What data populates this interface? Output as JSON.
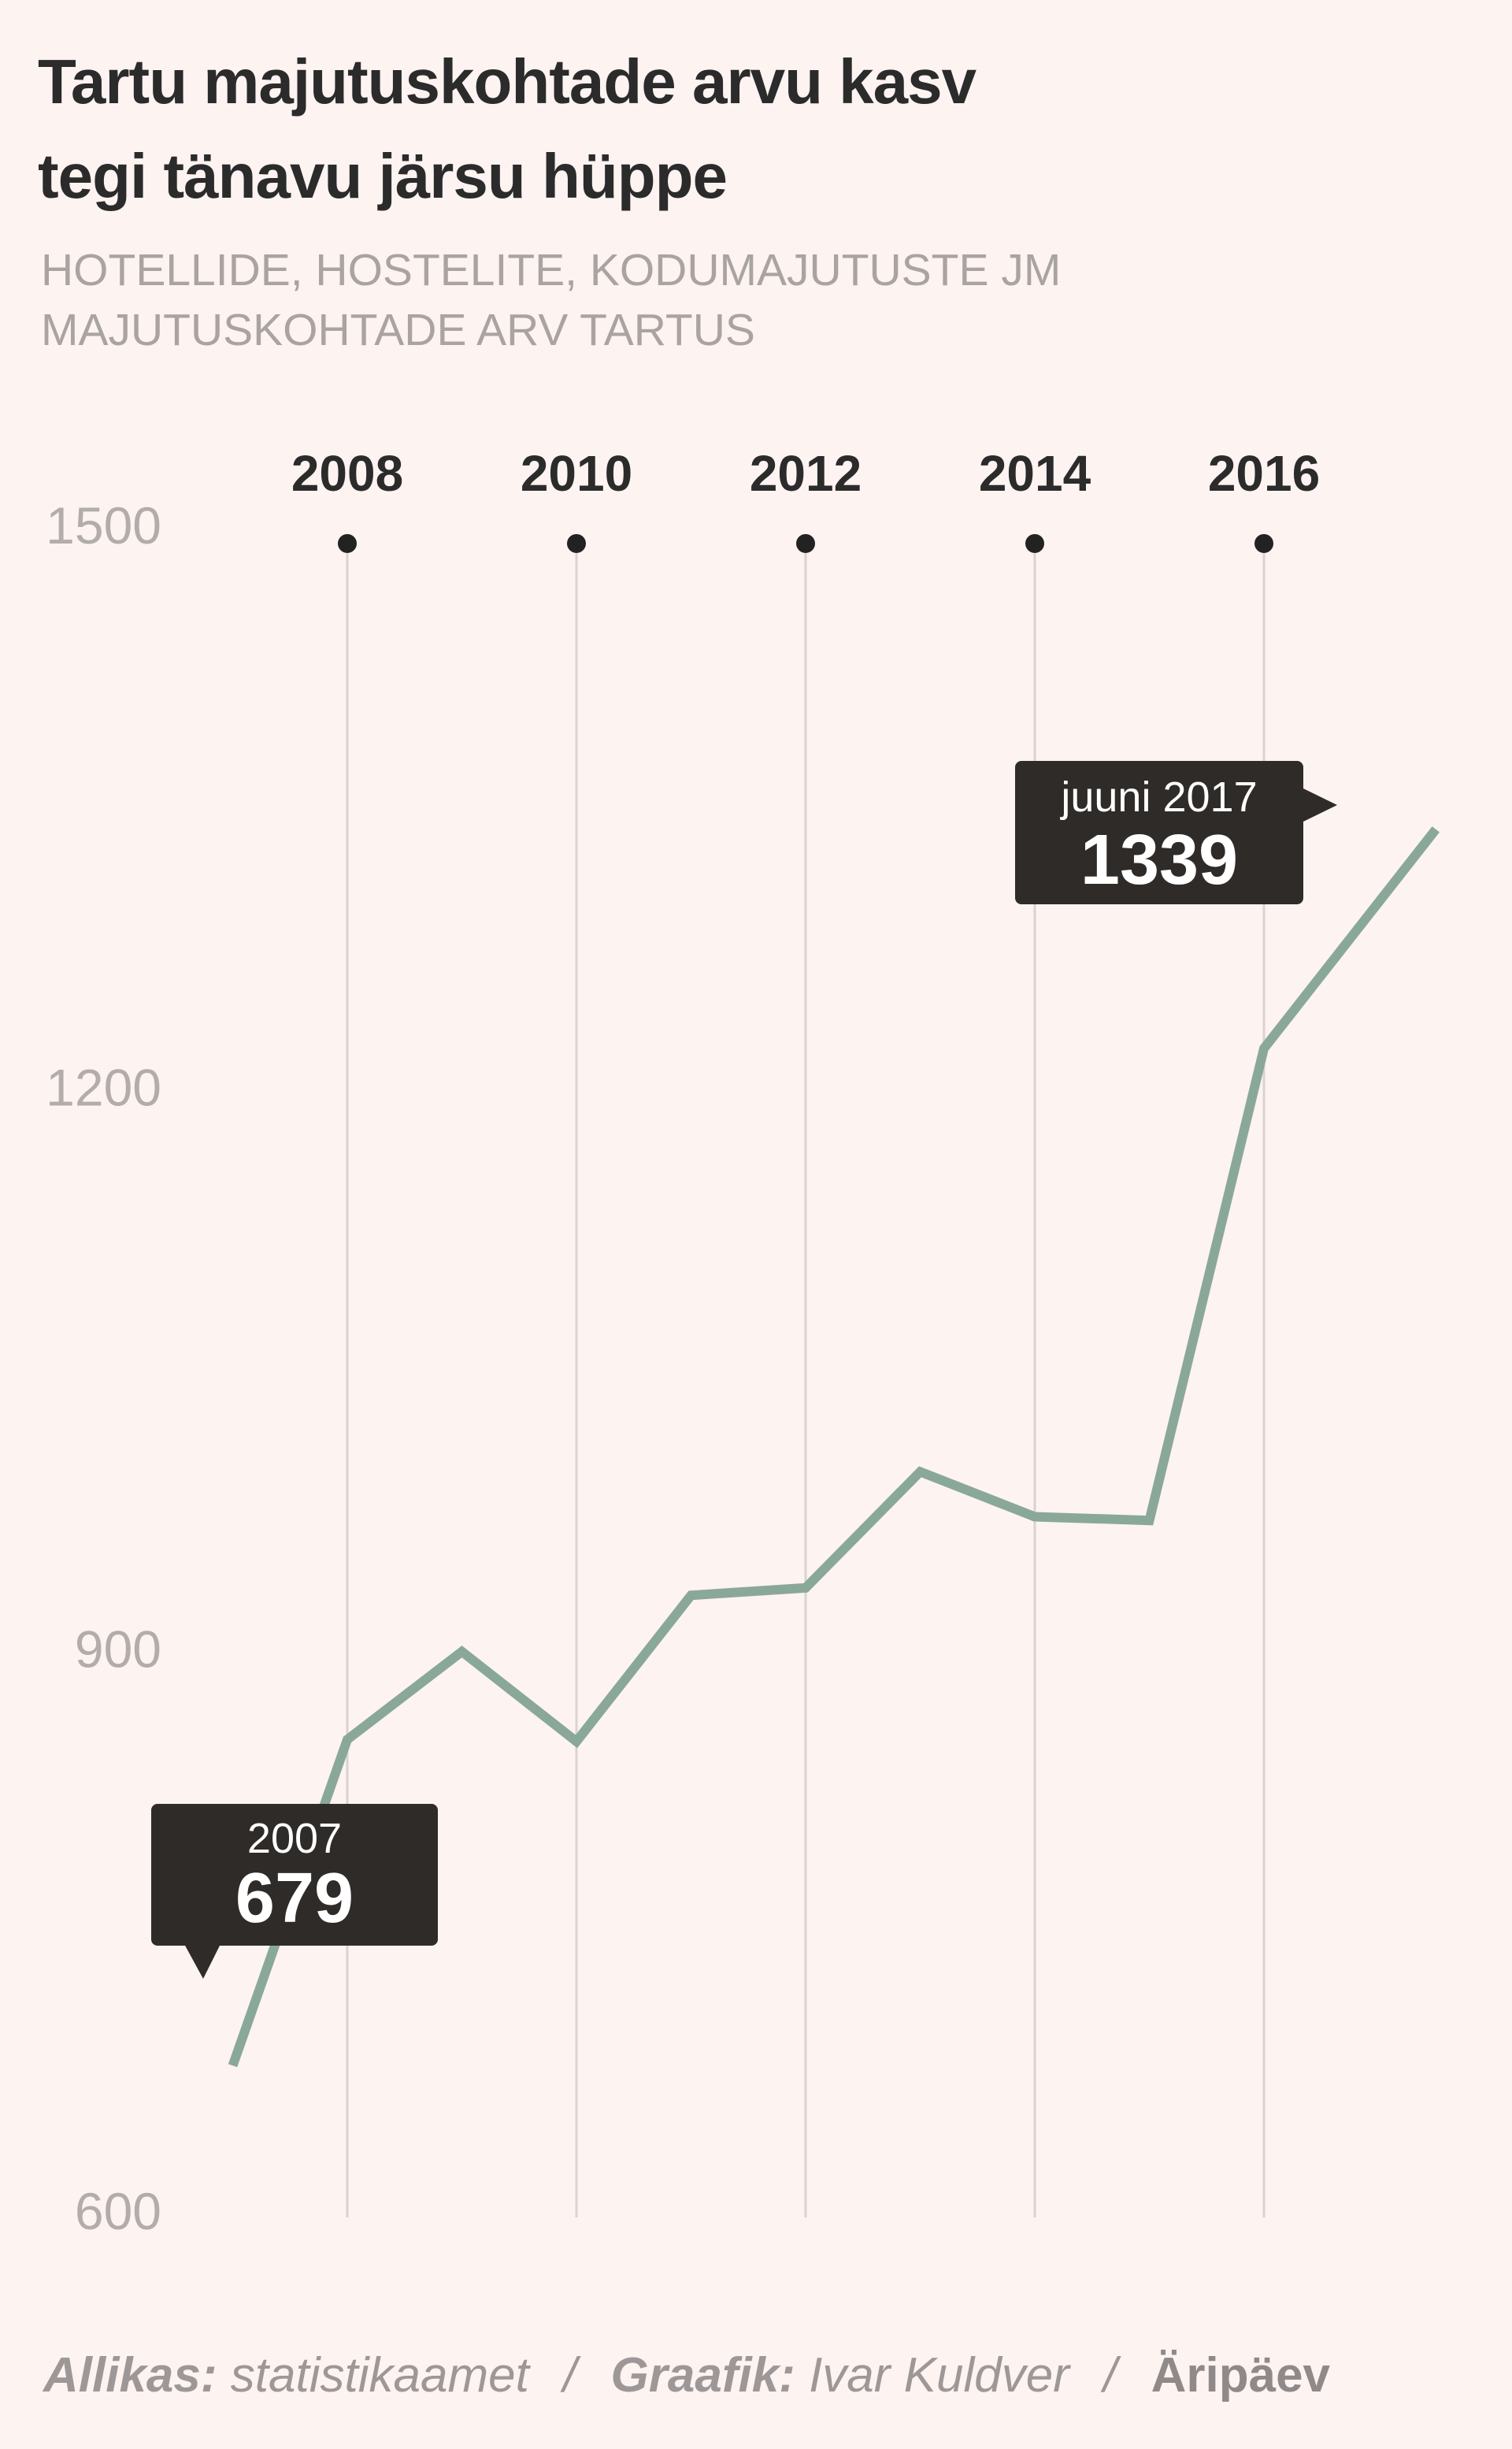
{
  "title": {
    "line1": "Tartu majutuskohtade arvu kasv",
    "line2": "tegi tänavu järsu hüppe"
  },
  "subtitle": {
    "line1": "HOTELLIDE, HOSTELITE, KODUMAJUTUSTE JM",
    "line2": "MAJUTUSKOHTADE ARV TARTUS"
  },
  "chart_data": {
    "type": "line",
    "x": [
      2007,
      2008,
      2009,
      2010,
      2011,
      2012,
      2013,
      2014,
      2015,
      2016,
      2017.5
    ],
    "series": [
      {
        "values": [
          679,
          853,
          900,
          852,
          930,
          934,
          996,
          972,
          970,
          1222,
          1339
        ],
        "color": "#8aa89a"
      }
    ],
    "x_ticks": [
      "2008",
      "2010",
      "2012",
      "2014",
      "2016"
    ],
    "x_tick_values": [
      2008,
      2010,
      2012,
      2014,
      2016
    ],
    "y_ticks": [
      "1500",
      "1200",
      "900",
      "600"
    ],
    "y_tick_values": [
      1500,
      1200,
      900,
      600
    ],
    "ylim": [
      600,
      1500
    ],
    "xlim": [
      2006,
      2018
    ],
    "x_axis_position": "top",
    "grid": "vertical",
    "annotations": [
      {
        "label": "2007",
        "value": "679",
        "x": 2007,
        "y": 679
      },
      {
        "label": "juuni 2017",
        "value": "1339",
        "x": 2017.5,
        "y": 1339
      }
    ]
  },
  "footer": {
    "source_label": "Allikas:",
    "source": "statistikaamet",
    "separator": "/",
    "graphic_label": "Graafik:",
    "author": "Ivar Kuldver",
    "brand": "Äripäev"
  },
  "colors": {
    "background": "#fdf3f1",
    "line": "#8aa89a",
    "callout": "#2f2b29",
    "axis_text": "#b2acab",
    "grid": "#dad3d1"
  }
}
